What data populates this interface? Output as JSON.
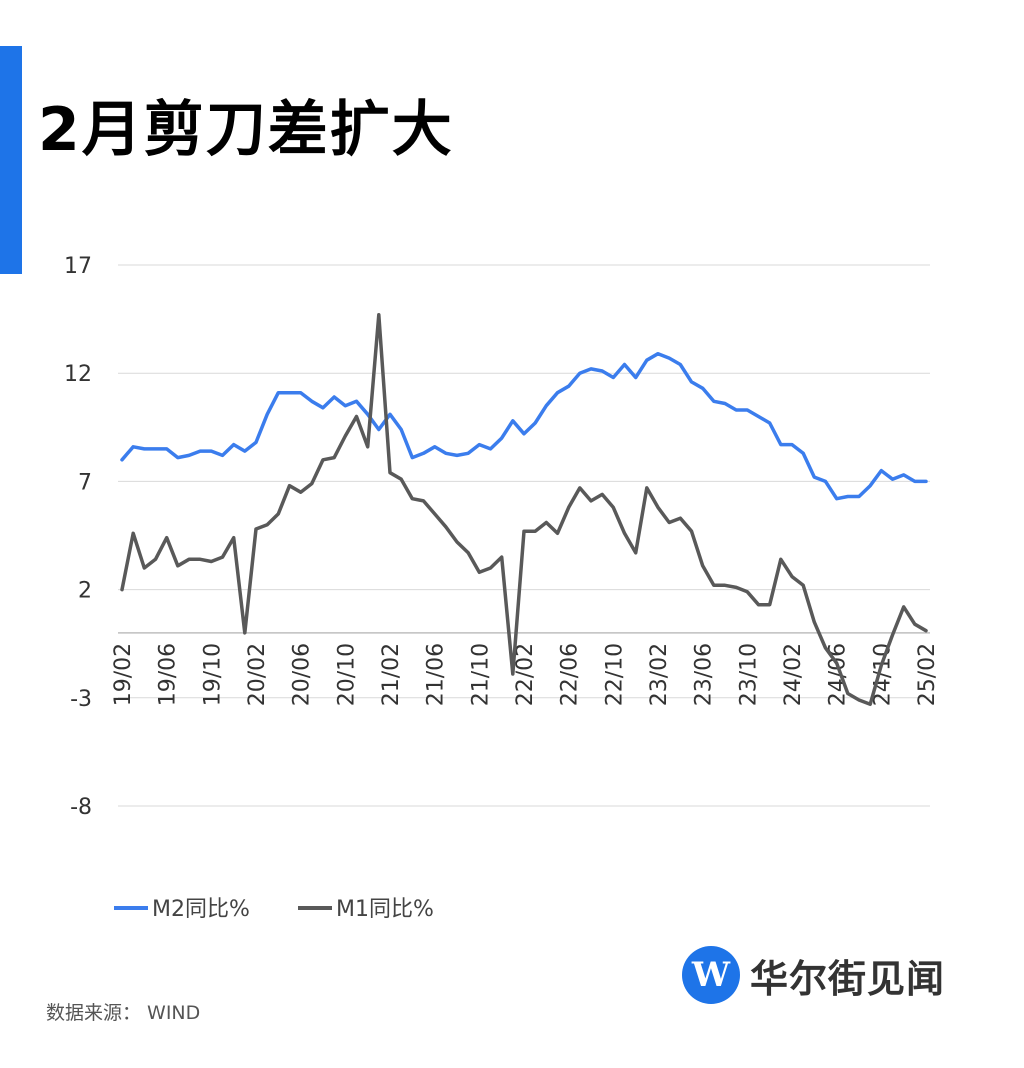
{
  "title": "2月剪刀差扩大",
  "source": "数据来源： WIND",
  "logo": {
    "mark": "W",
    "text": "华尔街见闻"
  },
  "colors": {
    "accent": "#1e74e8",
    "m2": "#3b7ded",
    "m1": "#595959",
    "grid": "#d9d9d9"
  },
  "chart_data": {
    "type": "line",
    "ylim": [
      -8,
      17
    ],
    "yticks": [
      17,
      12,
      7,
      2,
      -3,
      -8
    ],
    "grid": true,
    "legend_position": "bottom",
    "x": [
      "19/02",
      "19/03",
      "19/04",
      "19/05",
      "19/06",
      "19/07",
      "19/08",
      "19/09",
      "19/10",
      "19/11",
      "19/12",
      "20/01",
      "20/02",
      "20/03",
      "20/04",
      "20/05",
      "20/06",
      "20/07",
      "20/08",
      "20/09",
      "20/10",
      "20/11",
      "20/12",
      "21/01",
      "21/02",
      "21/03",
      "21/04",
      "21/05",
      "21/06",
      "21/07",
      "21/08",
      "21/09",
      "21/10",
      "21/11",
      "21/12",
      "22/01",
      "22/02",
      "22/03",
      "22/04",
      "22/05",
      "22/06",
      "22/07",
      "22/08",
      "22/09",
      "22/10",
      "22/11",
      "22/12",
      "23/01",
      "23/02",
      "23/03",
      "23/04",
      "23/05",
      "23/06",
      "23/07",
      "23/08",
      "23/09",
      "23/10",
      "23/11",
      "23/12",
      "24/01",
      "24/02",
      "24/03",
      "24/04",
      "24/05",
      "24/06",
      "24/07",
      "24/08",
      "24/09",
      "24/10",
      "24/11",
      "24/12",
      "25/01",
      "25/02"
    ],
    "xtick_labels": [
      "19/02",
      "19/06",
      "19/10",
      "20/02",
      "20/06",
      "20/10",
      "21/02",
      "21/06",
      "21/10",
      "22/02",
      "22/06",
      "22/10",
      "23/02",
      "23/06",
      "23/10",
      "24/02",
      "24/06",
      "24/10",
      "25/02"
    ],
    "series": [
      {
        "name": "M2同比%",
        "color": "#3b7ded",
        "values": [
          8.0,
          8.6,
          8.5,
          8.5,
          8.5,
          8.1,
          8.2,
          8.4,
          8.4,
          8.2,
          8.7,
          8.4,
          8.8,
          10.1,
          11.1,
          11.1,
          11.1,
          10.7,
          10.4,
          10.9,
          10.5,
          10.7,
          10.1,
          9.4,
          10.1,
          9.4,
          8.1,
          8.3,
          8.6,
          8.3,
          8.2,
          8.3,
          8.7,
          8.5,
          9.0,
          9.8,
          9.2,
          9.7,
          10.5,
          11.1,
          11.4,
          12.0,
          12.2,
          12.1,
          11.8,
          12.4,
          11.8,
          12.6,
          12.9,
          12.7,
          12.4,
          11.6,
          11.3,
          10.7,
          10.6,
          10.3,
          10.3,
          10.0,
          9.7,
          8.7,
          8.7,
          8.3,
          7.2,
          7.0,
          6.2,
          6.3,
          6.3,
          6.8,
          7.5,
          7.1,
          7.3,
          7.0,
          7.0
        ]
      },
      {
        "name": "M1同比%",
        "color": "#595959",
        "values": [
          2.0,
          4.6,
          3.0,
          3.4,
          4.4,
          3.1,
          3.4,
          3.4,
          3.3,
          3.5,
          4.4,
          0.0,
          4.8,
          5.0,
          5.5,
          6.8,
          6.5,
          6.9,
          8.0,
          8.1,
          9.1,
          10.0,
          8.6,
          14.7,
          7.4,
          7.1,
          6.2,
          6.1,
          5.5,
          4.9,
          4.2,
          3.7,
          2.8,
          3.0,
          3.5,
          -1.9,
          4.7,
          4.7,
          5.1,
          4.6,
          5.8,
          6.7,
          6.1,
          6.4,
          5.8,
          4.6,
          3.7,
          6.7,
          5.8,
          5.1,
          5.3,
          4.7,
          3.1,
          2.2,
          2.2,
          2.1,
          1.9,
          1.3,
          1.3,
          3.4,
          2.6,
          2.2,
          0.5,
          -0.7,
          -1.4,
          -2.8,
          -3.1,
          -3.3,
          -1.5,
          -0.1,
          1.2,
          0.4,
          0.1
        ]
      }
    ]
  }
}
